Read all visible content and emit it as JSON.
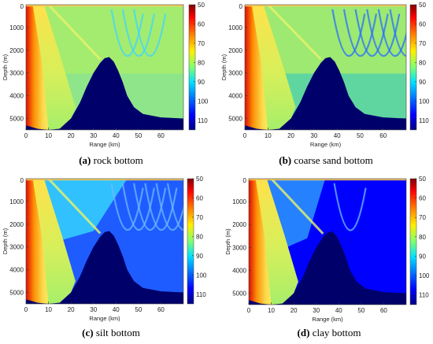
{
  "colors": {
    "deep": "#00007a",
    "seabed": "#00006b",
    "red": "#c80000",
    "orange": "#ff8a00",
    "yellow": "#ffe800",
    "green": "#7fe070",
    "cyan": "#33ddff",
    "blue": "#1a4dff",
    "navy": "#000082"
  },
  "chart_data": [
    {
      "type": "heatmap",
      "caption_label": "(a)",
      "caption_text": " rock bottom",
      "xlabel": "Range (km)",
      "ylabel": "Depth (m)",
      "xlim": [
        0,
        70
      ],
      "ylim": [
        5500,
        0
      ],
      "xticks": [
        0,
        10,
        20,
        30,
        40,
        50,
        60
      ],
      "yticks": [
        1000,
        2000,
        3000,
        4000,
        5000
      ],
      "colorbar_ticks": [
        50,
        60,
        70,
        80,
        90,
        100,
        110
      ],
      "colorbar_range": [
        50,
        115
      ],
      "field": "rock",
      "seabed": [
        [
          0,
          5300
        ],
        [
          5,
          5450
        ],
        [
          10,
          5500
        ],
        [
          15,
          5450
        ],
        [
          20,
          5000
        ],
        [
          24,
          4300
        ],
        [
          27,
          3600
        ],
        [
          30,
          3000
        ],
        [
          33,
          2550
        ],
        [
          35,
          2350
        ],
        [
          37,
          2300
        ],
        [
          39,
          2500
        ],
        [
          41,
          2900
        ],
        [
          43,
          3400
        ],
        [
          45,
          4000
        ],
        [
          48,
          4500
        ],
        [
          52,
          4800
        ],
        [
          60,
          4950
        ],
        [
          70,
          5000
        ]
      ]
    },
    {
      "type": "heatmap",
      "caption_label": "(b)",
      "caption_text": " coarse sand bottom",
      "xlabel": "Range (km)",
      "ylabel": "Depth (m)",
      "xlim": [
        0,
        70
      ],
      "ylim": [
        5500,
        0
      ],
      "xticks": [
        0,
        10,
        20,
        30,
        40,
        50,
        60
      ],
      "yticks": [
        1000,
        2000,
        3000,
        4000,
        5000
      ],
      "colorbar_ticks": [
        50,
        60,
        70,
        80,
        90,
        100,
        110
      ],
      "colorbar_range": [
        50,
        115
      ],
      "field": "sand",
      "seabed": [
        [
          0,
          5300
        ],
        [
          5,
          5450
        ],
        [
          10,
          5500
        ],
        [
          15,
          5450
        ],
        [
          20,
          5000
        ],
        [
          24,
          4300
        ],
        [
          27,
          3600
        ],
        [
          30,
          3000
        ],
        [
          33,
          2550
        ],
        [
          35,
          2350
        ],
        [
          37,
          2300
        ],
        [
          39,
          2500
        ],
        [
          41,
          2900
        ],
        [
          43,
          3400
        ],
        [
          45,
          4000
        ],
        [
          48,
          4500
        ],
        [
          52,
          4800
        ],
        [
          60,
          4950
        ],
        [
          70,
          5000
        ]
      ]
    },
    {
      "type": "heatmap",
      "caption_label": "(c)",
      "caption_text": " silt bottom",
      "xlabel": "Range (km)",
      "ylabel": "Depth (m)",
      "xlim": [
        0,
        70
      ],
      "ylim": [
        5500,
        0
      ],
      "xticks": [
        0,
        10,
        20,
        30,
        40,
        50,
        60
      ],
      "yticks": [
        1000,
        2000,
        3000,
        4000,
        5000
      ],
      "colorbar_ticks": [
        50,
        60,
        70,
        80,
        90,
        100,
        110
      ],
      "colorbar_range": [
        50,
        115
      ],
      "field": "silt",
      "seabed": [
        [
          0,
          5300
        ],
        [
          5,
          5450
        ],
        [
          10,
          5500
        ],
        [
          15,
          5450
        ],
        [
          20,
          5000
        ],
        [
          24,
          4300
        ],
        [
          27,
          3600
        ],
        [
          30,
          3000
        ],
        [
          33,
          2550
        ],
        [
          35,
          2350
        ],
        [
          37,
          2300
        ],
        [
          39,
          2500
        ],
        [
          41,
          2900
        ],
        [
          43,
          3400
        ],
        [
          45,
          4000
        ],
        [
          48,
          4500
        ],
        [
          52,
          4800
        ],
        [
          60,
          4950
        ],
        [
          70,
          5000
        ]
      ]
    },
    {
      "type": "heatmap",
      "caption_label": "(d)",
      "caption_text": " clay bottom",
      "xlabel": "Range (km)",
      "ylabel": "Depth (m)",
      "xlim": [
        0,
        70
      ],
      "ylim": [
        5500,
        0
      ],
      "xticks": [
        0,
        10,
        20,
        30,
        40,
        50,
        60
      ],
      "yticks": [
        1000,
        2000,
        3000,
        4000,
        5000
      ],
      "colorbar_ticks": [
        50,
        60,
        70,
        80,
        90,
        100,
        110
      ],
      "colorbar_range": [
        50,
        115
      ],
      "field": "clay",
      "seabed": [
        [
          0,
          5300
        ],
        [
          5,
          5450
        ],
        [
          10,
          5500
        ],
        [
          15,
          5450
        ],
        [
          20,
          5000
        ],
        [
          24,
          4300
        ],
        [
          27,
          3600
        ],
        [
          30,
          3000
        ],
        [
          33,
          2550
        ],
        [
          35,
          2350
        ],
        [
          37,
          2300
        ],
        [
          39,
          2500
        ],
        [
          41,
          2900
        ],
        [
          43,
          3400
        ],
        [
          45,
          4000
        ],
        [
          48,
          4500
        ],
        [
          52,
          4800
        ],
        [
          60,
          4950
        ],
        [
          70,
          5000
        ]
      ]
    }
  ]
}
